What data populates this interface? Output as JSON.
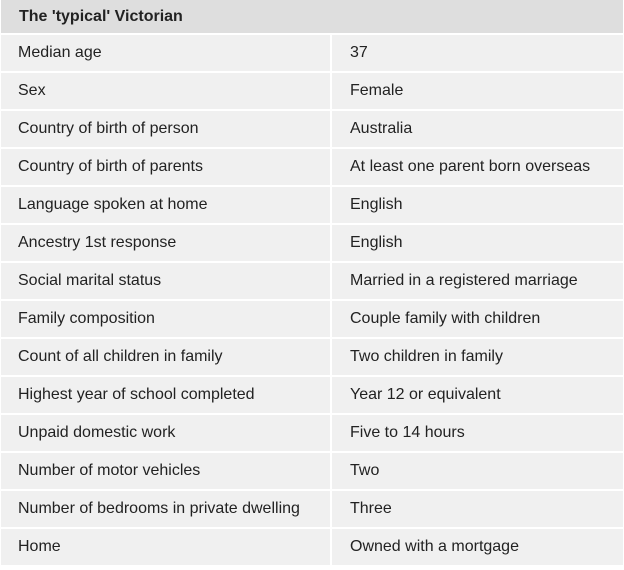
{
  "table": {
    "title": "The 'typical' Victorian",
    "rows": [
      {
        "label": "Median age",
        "value": "37"
      },
      {
        "label": "Sex",
        "value": "Female"
      },
      {
        "label": "Country of birth of person",
        "value": "Australia"
      },
      {
        "label": "Country of birth of parents",
        "value": "At least one parent born overseas"
      },
      {
        "label": "Language spoken at home",
        "value": "English"
      },
      {
        "label": "Ancestry 1st response",
        "value": "English"
      },
      {
        "label": "Social marital status",
        "value": "Married in a registered marriage"
      },
      {
        "label": "Family composition",
        "value": "Couple family with children"
      },
      {
        "label": "Count of all children in family",
        "value": "Two children in family"
      },
      {
        "label": "Highest year of school completed",
        "value": "Year 12 or equivalent"
      },
      {
        "label": "Unpaid domestic work",
        "value": "Five to 14 hours"
      },
      {
        "label": "Number of motor vehicles",
        "value": "Two"
      },
      {
        "label": "Number of bedrooms in private dwelling",
        "value": "Three"
      },
      {
        "label": "Home",
        "value": "Owned with a mortgage"
      }
    ]
  }
}
